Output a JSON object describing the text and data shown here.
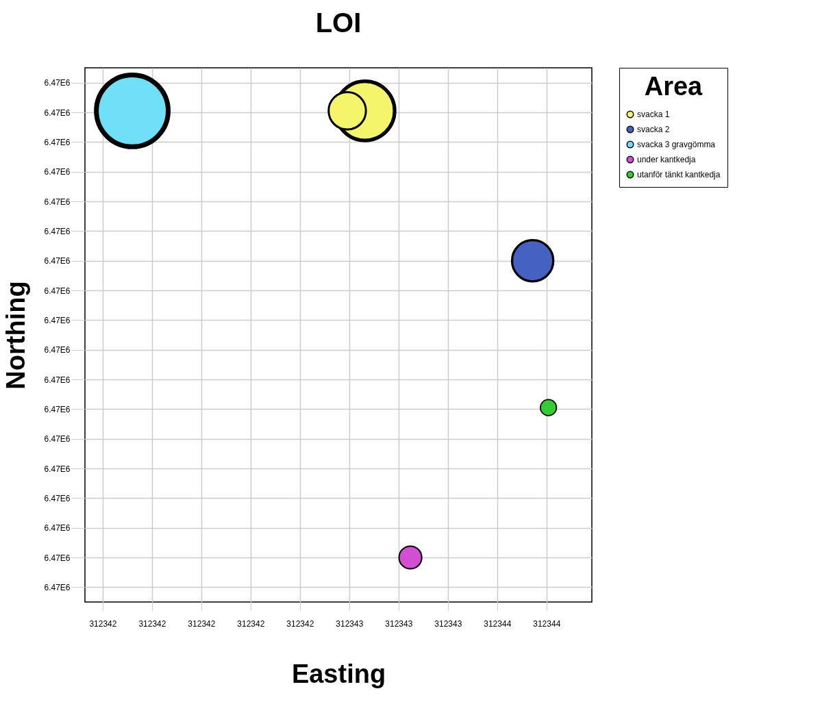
{
  "chart_data": {
    "type": "bubble",
    "title": "LOI",
    "xlabel": "Easting",
    "ylabel": "Northing",
    "legend_title": "Area",
    "legend": "right",
    "grid": true,
    "xlim": [
      312341.41,
      312343.98
    ],
    "xticks": [
      {
        "value": 312341.5,
        "label": "312342"
      },
      {
        "value": 312341.75,
        "label": "312342"
      },
      {
        "value": 312342.0,
        "label": "312342"
      },
      {
        "value": 312342.25,
        "label": "312342"
      },
      {
        "value": 312342.5,
        "label": "312342"
      },
      {
        "value": 312342.75,
        "label": "312343"
      },
      {
        "value": 312343.0,
        "label": "312343"
      },
      {
        "value": 312343.25,
        "label": "312343"
      },
      {
        "value": 312343.5,
        "label": "312344"
      },
      {
        "value": 312343.75,
        "label": "312344"
      }
    ],
    "ylim": [
      6469999.9,
      6470003.5
    ],
    "yticks": [
      {
        "value": 6470000.0,
        "label": "6.47E6"
      },
      {
        "value": 6470000.2,
        "label": "6.47E6"
      },
      {
        "value": 6470000.4,
        "label": "6.47E6"
      },
      {
        "value": 6470000.6,
        "label": "6.47E6"
      },
      {
        "value": 6470000.8,
        "label": "6.47E6"
      },
      {
        "value": 6470001.0,
        "label": "6.47E6"
      },
      {
        "value": 6470001.2,
        "label": "6.47E6"
      },
      {
        "value": 6470001.4,
        "label": "6.47E6"
      },
      {
        "value": 6470001.6,
        "label": "6.47E6"
      },
      {
        "value": 6470001.8,
        "label": "6.47E6"
      },
      {
        "value": 6470002.0,
        "label": "6.47E6"
      },
      {
        "value": 6470002.2,
        "label": "6.47E6"
      },
      {
        "value": 6470002.4,
        "label": "6.47E6"
      },
      {
        "value": 6470002.6,
        "label": "6.47E6"
      },
      {
        "value": 6470002.8,
        "label": "6.47E6"
      },
      {
        "value": 6470003.0,
        "label": "6.47E6"
      },
      {
        "value": 6470003.2,
        "label": "6.47E6"
      },
      {
        "value": 6470003.4,
        "label": "6.47E6"
      }
    ],
    "series": [
      {
        "name": "svacka 1",
        "color": "#f5f56b",
        "x": [
          312342.83,
          312342.74
        ],
        "values": [
          6470003.21,
          6470003.21
        ],
        "sizes": [
          0.68,
          0.27
        ]
      },
      {
        "name": "svacka 2",
        "color": "#4462c0",
        "x": [
          312343.68
        ],
        "values": [
          6470002.2
        ],
        "sizes": [
          0.33
        ]
      },
      {
        "name": "svacka 3 gravgömma",
        "color": "#70e0f8",
        "x": [
          312341.65
        ],
        "values": [
          6470003.21
        ],
        "sizes": [
          1
        ]
      },
      {
        "name": "under kantkedja",
        "color": "#d24ed2",
        "x": [
          312343.06
        ],
        "values": [
          6470000.2
        ],
        "sizes": [
          0.1
        ]
      },
      {
        "name": "utanför tänkt kantkedja",
        "color": "#33cc33",
        "x": [
          312343.76
        ],
        "values": [
          6470001.21
        ],
        "sizes": [
          0.05
        ]
      }
    ]
  }
}
